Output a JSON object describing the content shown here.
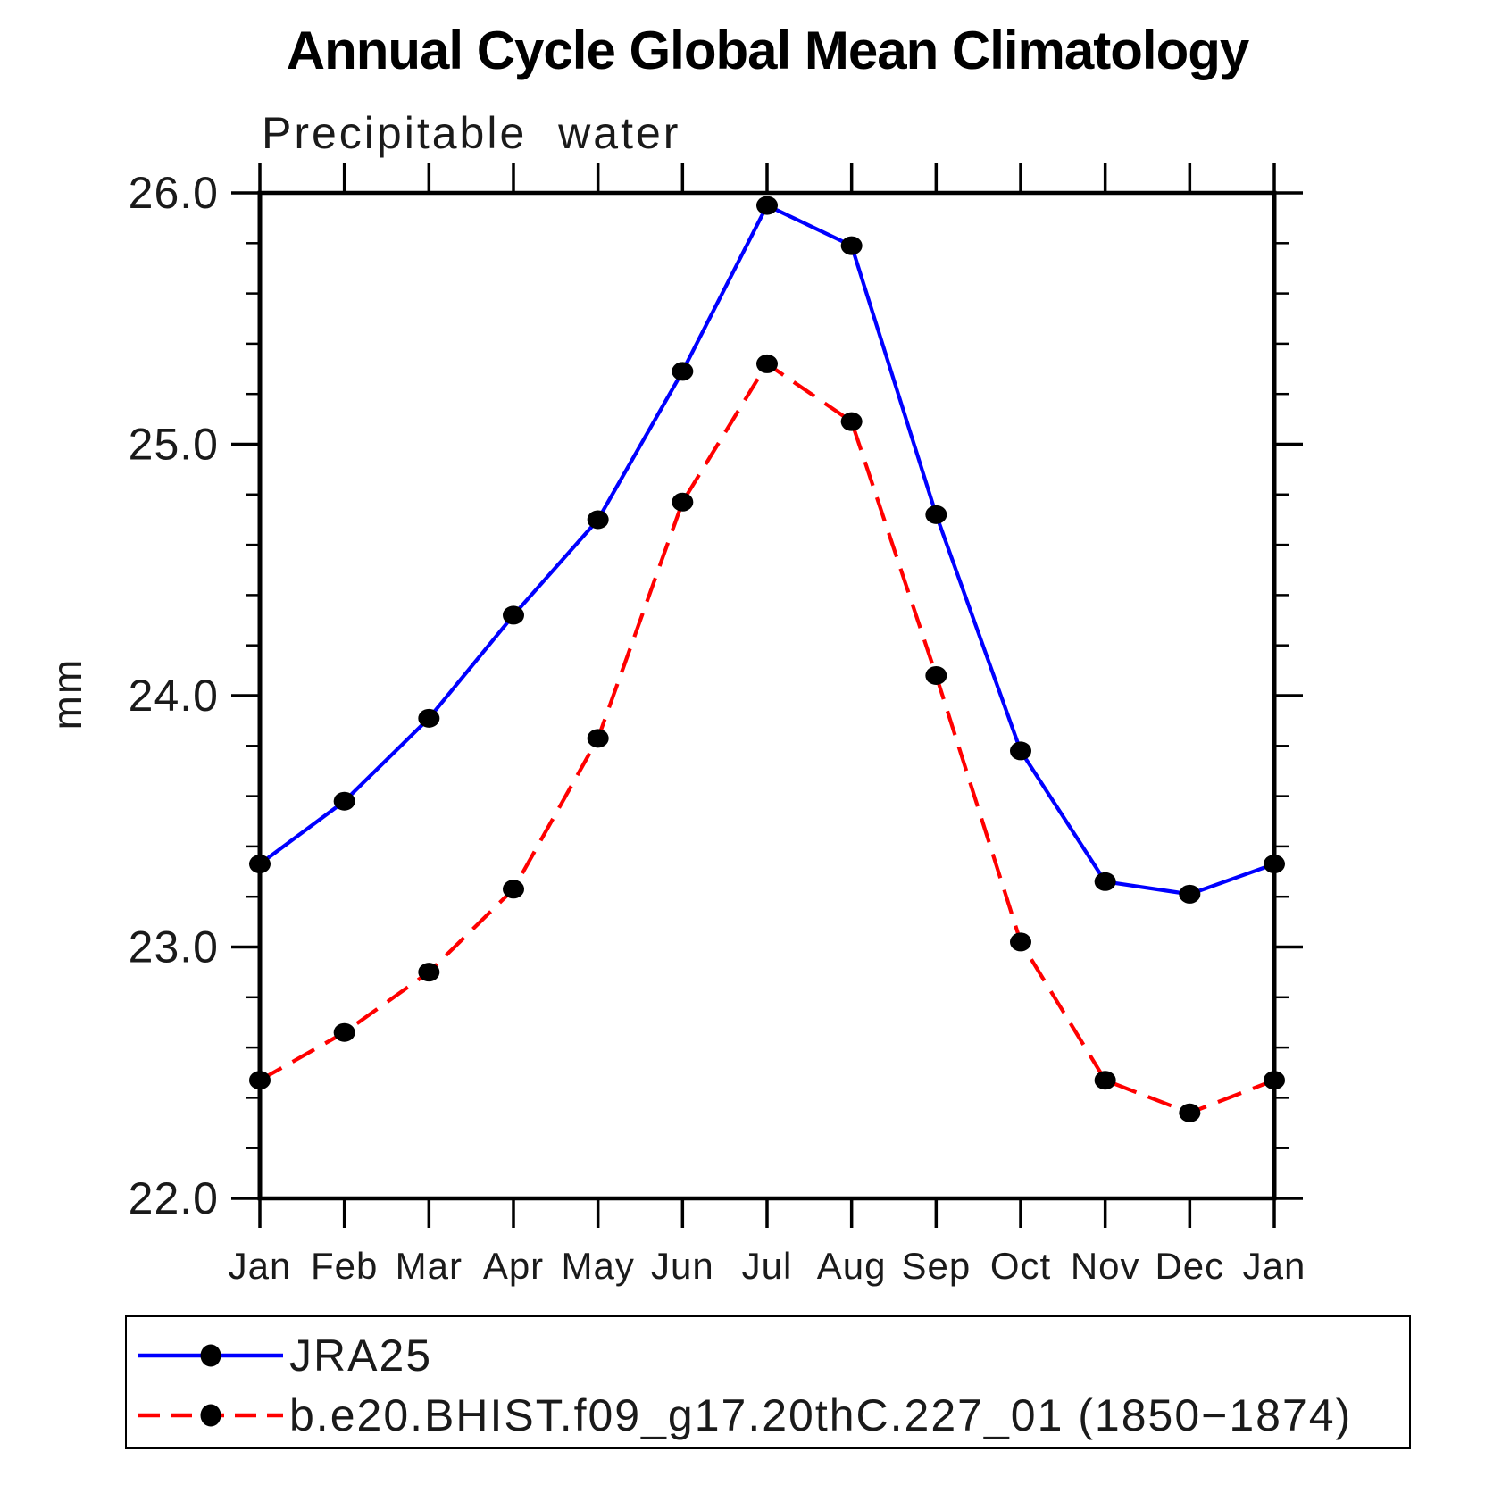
{
  "chart": {
    "title": "Annual Cycle Global Mean Climatology",
    "subtitle": "Precipitable water",
    "ylabel": "mm"
  },
  "chart_data": {
    "type": "line",
    "title": "Annual Cycle Global Mean Climatology",
    "subtitle": "Precipitable water",
    "xlabel": "",
    "ylabel": "mm",
    "categories": [
      "Jan",
      "Feb",
      "Mar",
      "Apr",
      "May",
      "Jun",
      "Jul",
      "Aug",
      "Sep",
      "Oct",
      "Nov",
      "Dec",
      "Jan"
    ],
    "ylim": [
      22.0,
      26.0
    ],
    "ytick_major": [
      22.0,
      23.0,
      24.0,
      25.0,
      26.0
    ],
    "ytick_labels": [
      "22.0",
      "23.0",
      "24.0",
      "25.0",
      "26.0"
    ],
    "ytick_minor_step": 0.2,
    "grid": false,
    "legend_position": "bottom",
    "marker_color": "#000000",
    "axis_color": "#000000",
    "series": [
      {
        "name": "JRA25",
        "color": "#0000ff",
        "line_style": "solid",
        "marker": "filled-circle",
        "values": [
          23.33,
          23.58,
          23.91,
          24.32,
          24.7,
          25.29,
          25.95,
          25.79,
          24.72,
          23.78,
          23.26,
          23.21,
          23.33
        ]
      },
      {
        "name": "b.e20.BHIST.f09_g17.20thC.227_01 (1850−1874)",
        "color": "#ff0000",
        "line_style": "dashed",
        "marker": "filled-circle",
        "values": [
          22.47,
          22.66,
          22.9,
          23.23,
          23.83,
          24.77,
          25.32,
          25.09,
          24.08,
          23.02,
          22.47,
          22.34,
          22.47
        ]
      }
    ]
  }
}
